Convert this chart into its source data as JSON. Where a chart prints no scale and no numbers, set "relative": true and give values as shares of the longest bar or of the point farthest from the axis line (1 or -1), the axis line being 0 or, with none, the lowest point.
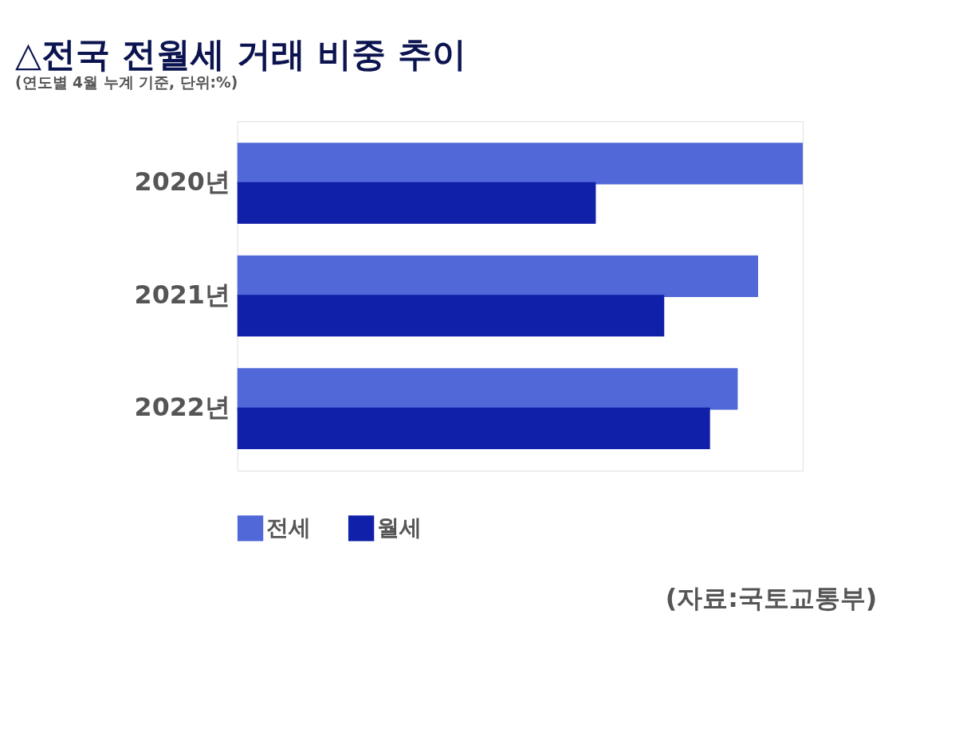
{
  "chart_data": {
    "type": "bar",
    "orientation": "horizontal",
    "relative": true,
    "title": "△전국 전월세 거래 비중 추이",
    "subtitle": "(연도별 4월 누계 기준, 단위:%)",
    "categories": [
      "2020년",
      "2021년",
      "2022년"
    ],
    "series": [
      {
        "name": "전세",
        "color": "#5068d8",
        "values": [
          1,
          0.921,
          0.885
        ]
      },
      {
        "name": "월세",
        "color": "#1020a8",
        "values": [
          0.634,
          0.755,
          0.836
        ]
      }
    ],
    "legend": "bottom",
    "grid": false,
    "annotations": [
      "(자료:국토교통부)"
    ]
  }
}
